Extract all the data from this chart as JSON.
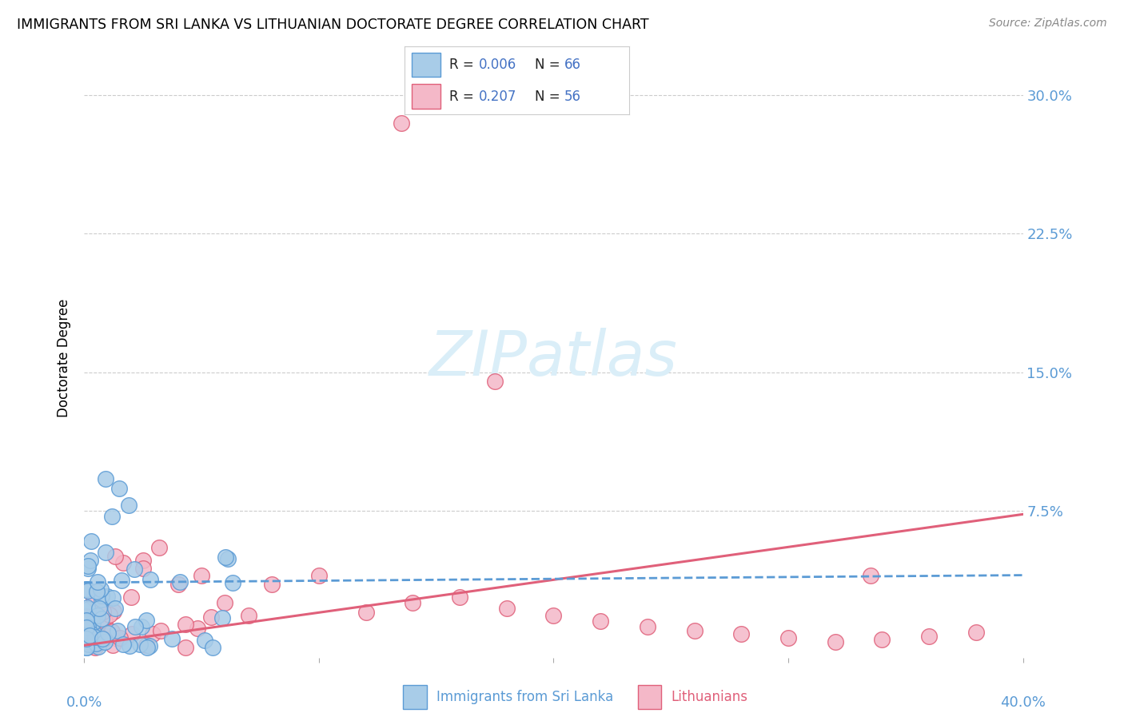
{
  "title": "IMMIGRANTS FROM SRI LANKA VS LITHUANIAN DOCTORATE DEGREE CORRELATION CHART",
  "source": "Source: ZipAtlas.com",
  "ylabel": "Doctorate Degree",
  "yticks": [
    "7.5%",
    "15.0%",
    "22.5%",
    "30.0%"
  ],
  "ytick_vals": [
    0.075,
    0.15,
    0.225,
    0.3
  ],
  "xlim": [
    0.0,
    0.4
  ],
  "ylim": [
    -0.005,
    0.32
  ],
  "color_blue_fill": "#a8cce8",
  "color_blue_edge": "#5b9bd5",
  "color_pink_fill": "#f4b8c8",
  "color_pink_edge": "#e0607a",
  "color_blue_line": "#5b9bd5",
  "color_pink_line": "#e0607a",
  "watermark_color": "#daeef8",
  "grid_color": "#cccccc",
  "legend_text_dark": "#222222",
  "legend_text_blue": "#4472c4",
  "bottom_label_blue": "#5b9bd5",
  "bottom_label_pink": "#e0607a",
  "pink_line_x0": 0.0,
  "pink_line_y0": 0.002,
  "pink_line_x1": 0.4,
  "pink_line_y1": 0.073,
  "blue_line_x0": 0.0,
  "blue_line_y0": 0.036,
  "blue_line_x1": 0.4,
  "blue_line_y1": 0.04
}
